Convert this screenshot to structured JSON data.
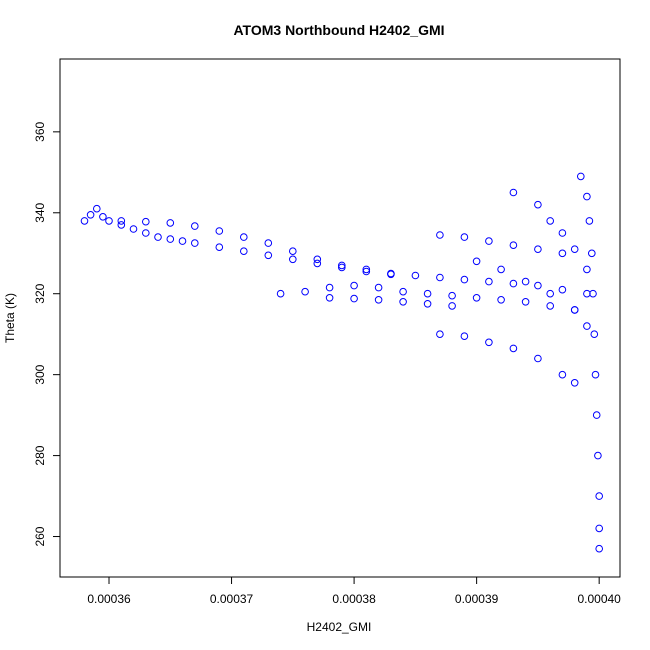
{
  "colors": {
    "series": "#0000ff",
    "axis": "#000000",
    "background": "#ffffff"
  },
  "chart_data": {
    "type": "scatter",
    "title": "ATOM3 Northbound H2402_GMI",
    "xlabel": "H2402_GMI",
    "ylabel": "Theta (K)",
    "xlim": [
      0.000356,
      0.0004017
    ],
    "ylim": [
      250,
      378
    ],
    "x_ticks": [
      0.00036,
      0.00037,
      0.00038,
      0.00039,
      0.0004
    ],
    "x_tick_labels": [
      "0.00036",
      "0.00037",
      "0.00038",
      "0.00039",
      "0.00040"
    ],
    "y_ticks": [
      260,
      280,
      300,
      320,
      340,
      360
    ],
    "y_tick_labels": [
      "260",
      "280",
      "300",
      "320",
      "340",
      "360"
    ],
    "marker": "open-circle",
    "grid": false,
    "legend": "none",
    "series": [
      {
        "points": [
          [
            0.000358,
            338
          ],
          [
            0.0003585,
            339.5
          ],
          [
            0.000359,
            341
          ],
          [
            0.0003595,
            339
          ],
          [
            0.00036,
            338
          ],
          [
            0.000361,
            337
          ],
          [
            0.000362,
            336
          ],
          [
            0.000363,
            335
          ],
          [
            0.000364,
            334
          ],
          [
            0.000365,
            333.5
          ],
          [
            0.000366,
            333
          ],
          [
            0.000361,
            338
          ],
          [
            0.000363,
            337.8
          ],
          [
            0.000365,
            337.5
          ],
          [
            0.000367,
            336.7
          ],
          [
            0.000369,
            335.5
          ],
          [
            0.000371,
            334
          ],
          [
            0.000373,
            332.5
          ],
          [
            0.000375,
            330.5
          ],
          [
            0.000377,
            328.5
          ],
          [
            0.000379,
            327
          ],
          [
            0.000381,
            326
          ],
          [
            0.000383,
            325
          ],
          [
            0.000385,
            324.5
          ],
          [
            0.000387,
            324
          ],
          [
            0.000389,
            323.5
          ],
          [
            0.000391,
            323
          ],
          [
            0.000393,
            322.5
          ],
          [
            0.000395,
            322
          ],
          [
            0.000397,
            321
          ],
          [
            0.000399,
            320
          ],
          [
            0.000367,
            332.5
          ],
          [
            0.000369,
            331.5
          ],
          [
            0.000371,
            330.5
          ],
          [
            0.000373,
            329.5
          ],
          [
            0.000375,
            328.5
          ],
          [
            0.000377,
            327.5
          ],
          [
            0.000379,
            326.5
          ],
          [
            0.000381,
            325.5
          ],
          [
            0.000383,
            324.8
          ],
          [
            0.000374,
            320
          ],
          [
            0.000376,
            320.5
          ],
          [
            0.000378,
            321.5
          ],
          [
            0.00038,
            322
          ],
          [
            0.000382,
            321.5
          ],
          [
            0.000384,
            320.5
          ],
          [
            0.000386,
            320
          ],
          [
            0.000388,
            319.5
          ],
          [
            0.00039,
            319
          ],
          [
            0.000392,
            318.5
          ],
          [
            0.000394,
            318
          ],
          [
            0.000396,
            317
          ],
          [
            0.000398,
            316
          ],
          [
            0.000378,
            319
          ],
          [
            0.00038,
            318.8
          ],
          [
            0.000382,
            318.5
          ],
          [
            0.000384,
            318
          ],
          [
            0.000386,
            317.5
          ],
          [
            0.000388,
            317
          ],
          [
            0.000387,
            310
          ],
          [
            0.000389,
            309.5
          ],
          [
            0.000391,
            308
          ],
          [
            0.000393,
            306.5
          ],
          [
            0.000395,
            304
          ],
          [
            0.000397,
            300
          ],
          [
            0.000398,
            298
          ],
          [
            0.000387,
            334.5
          ],
          [
            0.000389,
            334
          ],
          [
            0.000391,
            333
          ],
          [
            0.000393,
            332
          ],
          [
            0.000395,
            331
          ],
          [
            0.000397,
            330
          ],
          [
            0.000393,
            345
          ],
          [
            0.000395,
            342
          ],
          [
            0.000396,
            338
          ],
          [
            0.000397,
            335
          ],
          [
            0.000398,
            331
          ],
          [
            0.000399,
            326
          ],
          [
            0.00039,
            328
          ],
          [
            0.000392,
            326
          ],
          [
            0.000394,
            323
          ],
          [
            0.000396,
            320
          ],
          [
            0.000398,
            316
          ],
          [
            0.000399,
            312
          ],
          [
            0.0003985,
            349
          ],
          [
            0.000399,
            344
          ],
          [
            0.0003992,
            338
          ],
          [
            0.0003994,
            330
          ],
          [
            0.0003995,
            320
          ],
          [
            0.0003996,
            310
          ],
          [
            0.0003997,
            300
          ],
          [
            0.0003998,
            290
          ],
          [
            0.0003999,
            280
          ],
          [
            0.0004,
            270
          ],
          [
            0.0004,
            262
          ],
          [
            0.0004,
            257
          ]
        ]
      }
    ]
  }
}
